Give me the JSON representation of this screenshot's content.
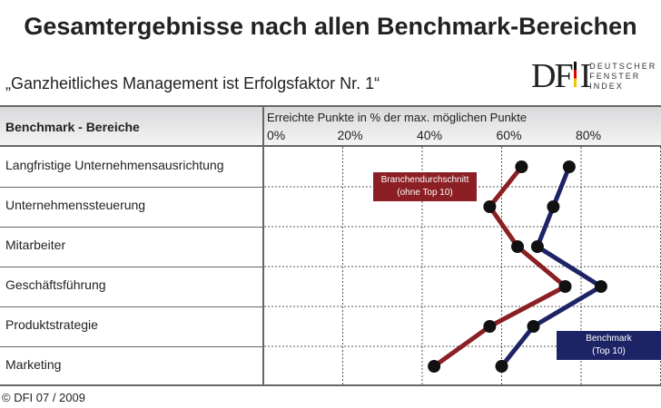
{
  "title": "Gesamtergebnisse nach allen Benchmark-Bereichen",
  "subtitle": "„Ganzheitliches Management ist Erfolgsfaktor Nr. 1“",
  "logo": {
    "letters": "DFI",
    "words": [
      "DEUTSCHER",
      "FENSTER",
      "INDEX"
    ]
  },
  "footer": "© DFI 07 / 2009",
  "chart_data": {
    "type": "line",
    "header_left": "Benchmark - Bereiche",
    "xlabel": "Erreichte Punkte in % der max. möglichen Punkte",
    "xticks": [
      "0%",
      "20%",
      "40%",
      "60%",
      "80%"
    ],
    "xlim": [
      0,
      100
    ],
    "grid": true,
    "categories": [
      "Langfristige Unternehmensausrichtung",
      "Unternehmenssteuerung",
      "Mitarbeiter",
      "Geschäftsführung",
      "Produktstrategie",
      "Marketing"
    ],
    "series": [
      {
        "name": "Branchendurchschnitt",
        "sub": "(ohne Top 10)",
        "color": "#8b1f24",
        "values": [
          65,
          57,
          64,
          76,
          57,
          43
        ]
      },
      {
        "name": "Benchmark",
        "sub": "(Top 10)",
        "color": "#1d2466",
        "values": [
          77,
          73,
          69,
          85,
          68,
          60
        ]
      }
    ]
  }
}
